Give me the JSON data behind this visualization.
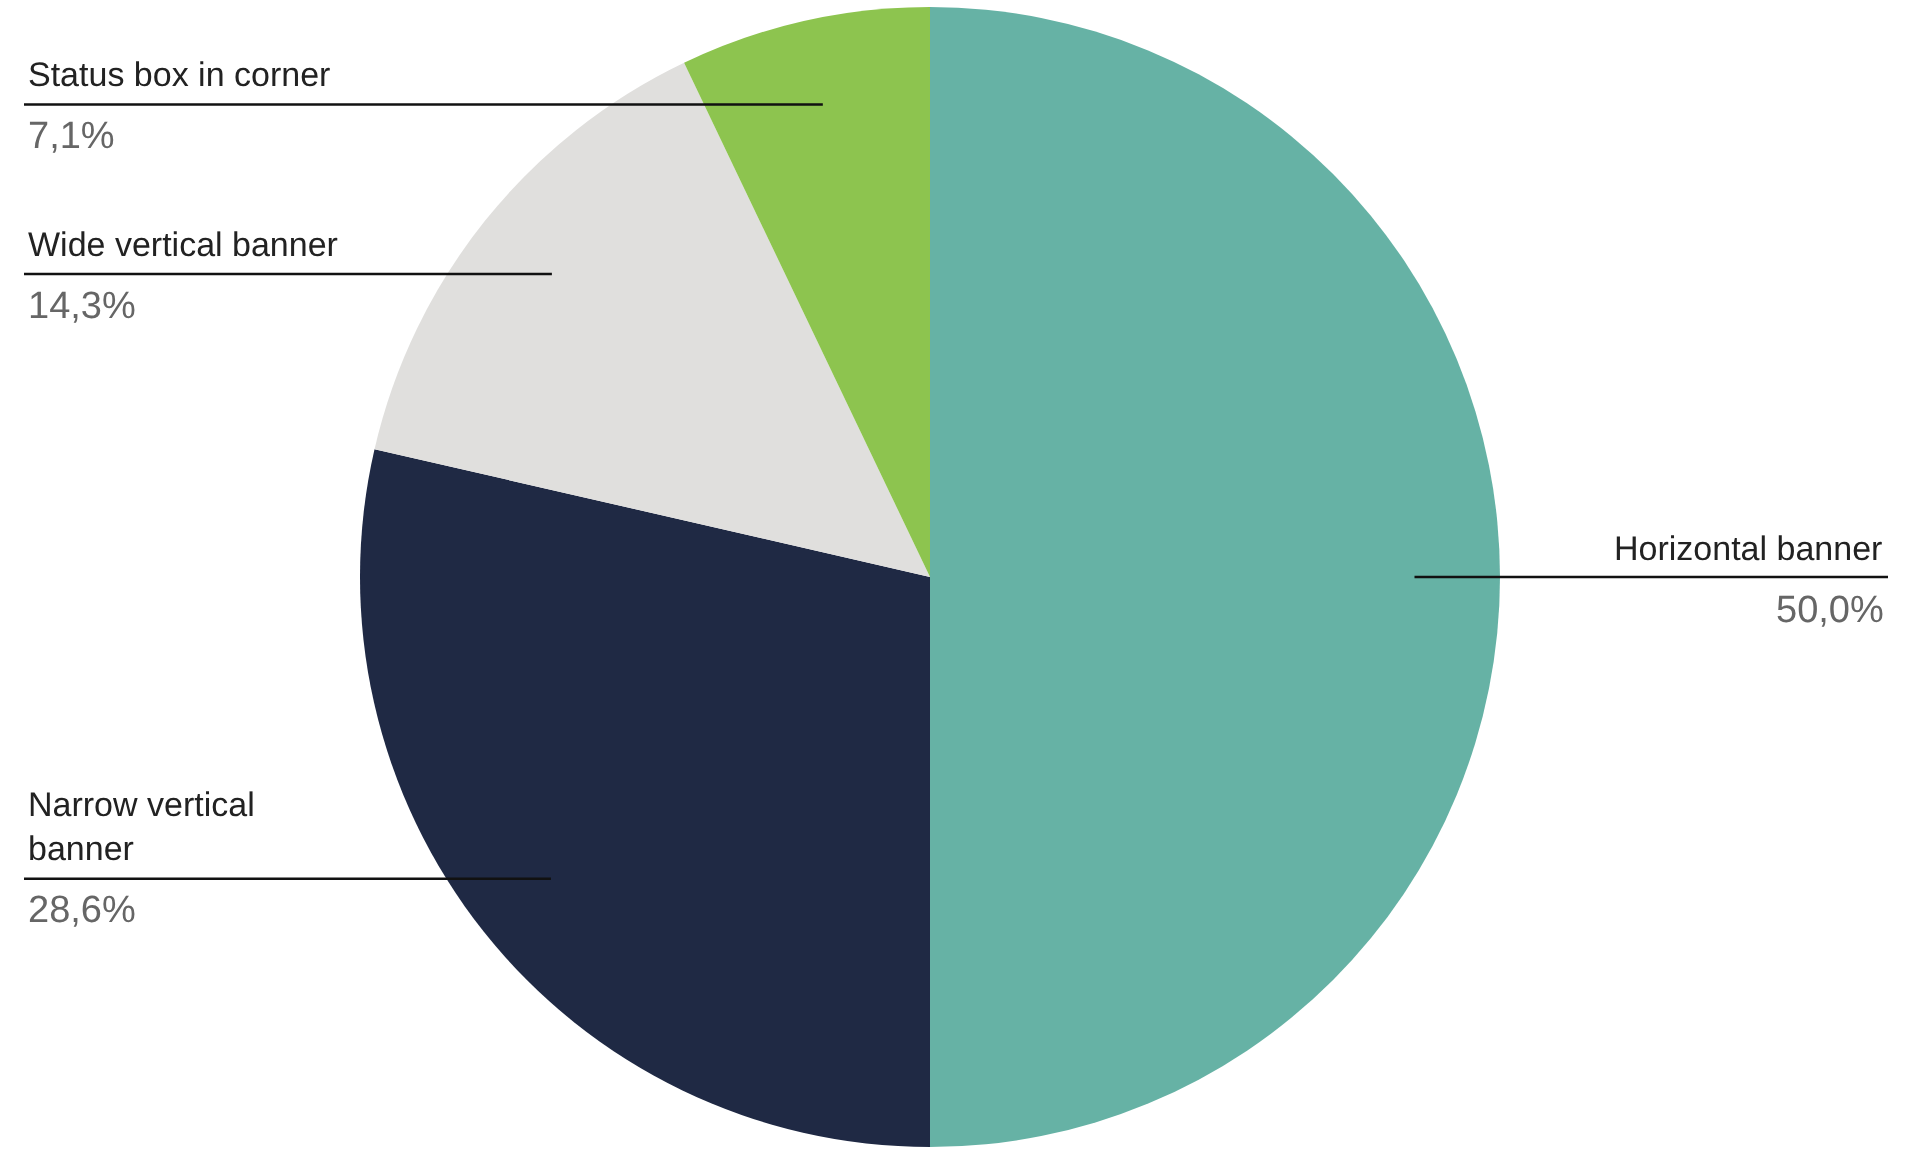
{
  "chart_data": {
    "type": "pie",
    "categories": [
      "Horizontal banner",
      "Narrow vertical banner",
      "Wide vertical banner",
      "Status box in corner"
    ],
    "values": [
      50.0,
      28.6,
      14.3,
      7.1
    ],
    "value_labels": [
      "50,0%",
      "28,6%",
      "14,3%",
      "7,1%"
    ],
    "colors": [
      "#66b2a5",
      "#1f2944",
      "#e0dfdd",
      "#8dc44f"
    ],
    "legend": false
  }
}
